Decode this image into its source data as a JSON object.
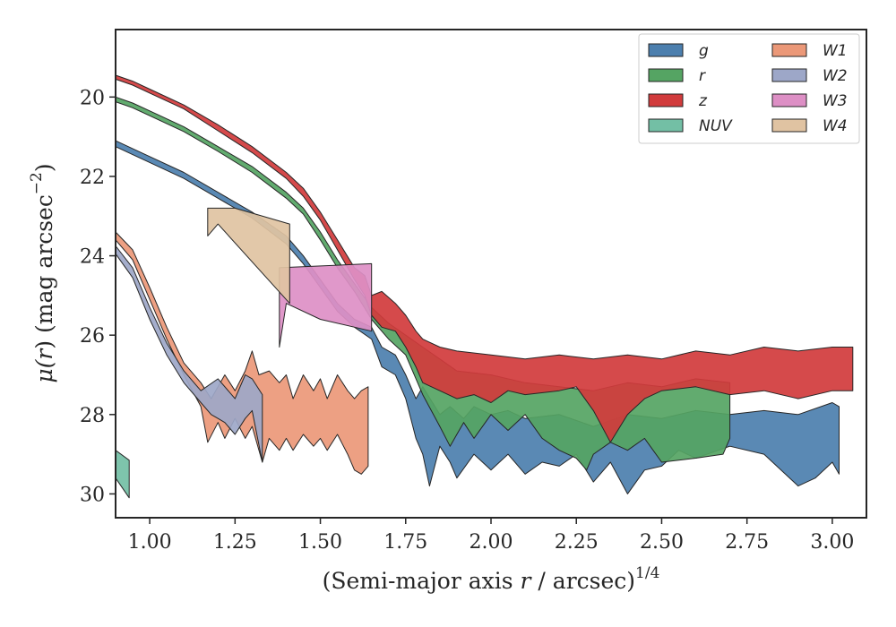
{
  "chart_data": {
    "type": "area",
    "xlabel": "(Semi-major axis r / arcsec)",
    "xlabel_parts": {
      "pre": "(Semi-major axis ",
      "var": "r",
      "post": " / arcsec)",
      "sup": "1/4"
    },
    "ylabel_parts": {
      "mu": "μ(",
      "var": "r",
      "post": ") (mag arcsec",
      "sup": "−2",
      "close": ")"
    },
    "xlim": [
      0.9,
      3.1
    ],
    "ylim": [
      30.6,
      18.3
    ],
    "y_inverted": true,
    "x_ticks": [
      1.0,
      1.25,
      1.5,
      1.75,
      2.0,
      2.25,
      2.5,
      2.75,
      3.0
    ],
    "x_tick_labels": [
      "1.00",
      "1.25",
      "1.50",
      "1.75",
      "2.00",
      "2.25",
      "2.50",
      "2.75",
      "3.00"
    ],
    "y_ticks": [
      20,
      22,
      24,
      26,
      28,
      30
    ],
    "y_tick_labels": [
      "20",
      "22",
      "24",
      "26",
      "28",
      "30"
    ],
    "grid": false,
    "legend": {
      "placement": "top-right",
      "columns": 2
    },
    "series": [
      {
        "name": "g",
        "color": "#4c7fae",
        "upper": [
          [
            0.9,
            21.1
          ],
          [
            0.95,
            21.3
          ],
          [
            1.0,
            21.5
          ],
          [
            1.1,
            21.9
          ],
          [
            1.2,
            22.4
          ],
          [
            1.3,
            22.9
          ],
          [
            1.4,
            23.5
          ],
          [
            1.45,
            24.0
          ],
          [
            1.5,
            24.6
          ],
          [
            1.55,
            25.2
          ],
          [
            1.6,
            25.6
          ],
          [
            1.65,
            25.8
          ],
          [
            1.68,
            26.3
          ],
          [
            1.72,
            26.5
          ],
          [
            1.75,
            27.0
          ],
          [
            1.78,
            27.6
          ],
          [
            1.8,
            27.3
          ],
          [
            1.85,
            28.0
          ],
          [
            1.88,
            27.8
          ],
          [
            1.92,
            28.1
          ],
          [
            1.95,
            27.8
          ],
          [
            2.0,
            28.0
          ],
          [
            2.05,
            27.9
          ],
          [
            2.1,
            28.1
          ],
          [
            2.2,
            28.0
          ],
          [
            2.3,
            28.3
          ],
          [
            2.4,
            28.0
          ],
          [
            2.5,
            28.1
          ],
          [
            2.6,
            27.9
          ],
          [
            2.7,
            28.0
          ],
          [
            2.8,
            27.9
          ],
          [
            2.9,
            28.0
          ],
          [
            3.0,
            27.7
          ],
          [
            3.02,
            27.8
          ]
        ],
        "lower": [
          [
            0.9,
            21.25
          ],
          [
            0.95,
            21.45
          ],
          [
            1.0,
            21.65
          ],
          [
            1.1,
            22.05
          ],
          [
            1.2,
            22.55
          ],
          [
            1.3,
            23.05
          ],
          [
            1.4,
            23.7
          ],
          [
            1.45,
            24.2
          ],
          [
            1.5,
            24.8
          ],
          [
            1.55,
            25.4
          ],
          [
            1.6,
            25.8
          ],
          [
            1.65,
            26.1
          ],
          [
            1.68,
            26.8
          ],
          [
            1.72,
            27.0
          ],
          [
            1.75,
            27.6
          ],
          [
            1.78,
            28.6
          ],
          [
            1.8,
            29.0
          ],
          [
            1.82,
            29.8
          ],
          [
            1.85,
            28.8
          ],
          [
            1.88,
            29.2
          ],
          [
            1.9,
            29.6
          ],
          [
            1.95,
            29.0
          ],
          [
            2.0,
            29.4
          ],
          [
            2.05,
            29.0
          ],
          [
            2.1,
            29.5
          ],
          [
            2.15,
            29.2
          ],
          [
            2.2,
            29.3
          ],
          [
            2.25,
            29.0
          ],
          [
            2.3,
            29.7
          ],
          [
            2.35,
            29.2
          ],
          [
            2.4,
            30.0
          ],
          [
            2.45,
            29.4
          ],
          [
            2.5,
            29.3
          ],
          [
            2.55,
            28.9
          ],
          [
            2.6,
            29.1
          ],
          [
            2.7,
            28.8
          ],
          [
            2.8,
            29.0
          ],
          [
            2.9,
            29.8
          ],
          [
            2.95,
            29.6
          ],
          [
            3.0,
            29.2
          ],
          [
            3.02,
            29.5
          ]
        ]
      },
      {
        "name": "r",
        "color": "#55a463",
        "upper": [
          [
            0.9,
            20.0
          ],
          [
            0.95,
            20.15
          ],
          [
            1.0,
            20.35
          ],
          [
            1.1,
            20.75
          ],
          [
            1.2,
            21.25
          ],
          [
            1.3,
            21.75
          ],
          [
            1.4,
            22.4
          ],
          [
            1.45,
            22.8
          ],
          [
            1.5,
            23.4
          ],
          [
            1.55,
            24.1
          ],
          [
            1.6,
            24.7
          ],
          [
            1.65,
            25.3
          ],
          [
            1.7,
            25.7
          ],
          [
            1.75,
            26.0
          ],
          [
            1.8,
            26.3
          ],
          [
            1.85,
            26.6
          ],
          [
            1.9,
            26.9
          ],
          [
            2.0,
            27.0
          ],
          [
            2.1,
            27.2
          ],
          [
            2.2,
            27.3
          ],
          [
            2.3,
            27.4
          ],
          [
            2.4,
            27.2
          ],
          [
            2.5,
            27.3
          ],
          [
            2.6,
            27.1
          ],
          [
            2.7,
            27.2
          ]
        ],
        "lower": [
          [
            0.9,
            20.12
          ],
          [
            0.95,
            20.27
          ],
          [
            1.0,
            20.47
          ],
          [
            1.1,
            20.87
          ],
          [
            1.2,
            21.37
          ],
          [
            1.3,
            21.9
          ],
          [
            1.4,
            22.55
          ],
          [
            1.45,
            22.95
          ],
          [
            1.5,
            23.6
          ],
          [
            1.55,
            24.3
          ],
          [
            1.6,
            24.9
          ],
          [
            1.65,
            25.6
          ],
          [
            1.7,
            26.1
          ],
          [
            1.75,
            26.5
          ],
          [
            1.8,
            27.5
          ],
          [
            1.85,
            28.3
          ],
          [
            1.88,
            28.8
          ],
          [
            1.92,
            28.2
          ],
          [
            1.95,
            28.6
          ],
          [
            2.0,
            28.0
          ],
          [
            2.05,
            28.4
          ],
          [
            2.1,
            28.0
          ],
          [
            2.15,
            28.6
          ],
          [
            2.2,
            28.9
          ],
          [
            2.25,
            29.1
          ],
          [
            2.28,
            29.4
          ],
          [
            2.3,
            29.0
          ],
          [
            2.35,
            28.7
          ],
          [
            2.4,
            28.9
          ],
          [
            2.45,
            28.6
          ],
          [
            2.5,
            29.2
          ],
          [
            2.6,
            29.1
          ],
          [
            2.68,
            29.0
          ],
          [
            2.7,
            28.6
          ]
        ]
      },
      {
        "name": "z",
        "color": "#d13b3c",
        "upper": [
          [
            0.9,
            19.45
          ],
          [
            0.95,
            19.6
          ],
          [
            1.0,
            19.8
          ],
          [
            1.1,
            20.2
          ],
          [
            1.2,
            20.7
          ],
          [
            1.3,
            21.25
          ],
          [
            1.4,
            21.9
          ],
          [
            1.45,
            22.3
          ],
          [
            1.5,
            22.9
          ],
          [
            1.55,
            23.6
          ],
          [
            1.6,
            24.3
          ],
          [
            1.63,
            24.5
          ],
          [
            1.65,
            25.0
          ],
          [
            1.68,
            24.9
          ],
          [
            1.72,
            25.2
          ],
          [
            1.75,
            25.5
          ],
          [
            1.78,
            25.9
          ],
          [
            1.8,
            26.1
          ],
          [
            1.85,
            26.3
          ],
          [
            1.9,
            26.4
          ],
          [
            2.0,
            26.5
          ],
          [
            2.1,
            26.6
          ],
          [
            2.2,
            26.5
          ],
          [
            2.3,
            26.6
          ],
          [
            2.4,
            26.5
          ],
          [
            2.5,
            26.6
          ],
          [
            2.6,
            26.4
          ],
          [
            2.7,
            26.5
          ],
          [
            2.8,
            26.3
          ],
          [
            2.9,
            26.4
          ],
          [
            3.0,
            26.3
          ],
          [
            3.06,
            26.3
          ]
        ],
        "lower": [
          [
            0.9,
            19.55
          ],
          [
            0.95,
            19.7
          ],
          [
            1.0,
            19.9
          ],
          [
            1.1,
            20.3
          ],
          [
            1.2,
            20.85
          ],
          [
            1.3,
            21.4
          ],
          [
            1.4,
            22.05
          ],
          [
            1.45,
            22.5
          ],
          [
            1.5,
            23.1
          ],
          [
            1.55,
            23.85
          ],
          [
            1.6,
            24.6
          ],
          [
            1.63,
            25.0
          ],
          [
            1.65,
            25.5
          ],
          [
            1.68,
            25.8
          ],
          [
            1.72,
            25.9
          ],
          [
            1.75,
            26.3
          ],
          [
            1.78,
            26.8
          ],
          [
            1.8,
            27.2
          ],
          [
            1.85,
            27.4
          ],
          [
            1.9,
            27.6
          ],
          [
            1.95,
            27.5
          ],
          [
            2.0,
            27.7
          ],
          [
            2.05,
            27.4
          ],
          [
            2.1,
            27.5
          ],
          [
            2.2,
            27.4
          ],
          [
            2.25,
            27.3
          ],
          [
            2.3,
            27.9
          ],
          [
            2.35,
            28.7
          ],
          [
            2.4,
            28.0
          ],
          [
            2.45,
            27.6
          ],
          [
            2.5,
            27.4
          ],
          [
            2.6,
            27.3
          ],
          [
            2.7,
            27.5
          ],
          [
            2.8,
            27.4
          ],
          [
            2.9,
            27.6
          ],
          [
            3.0,
            27.4
          ],
          [
            3.06,
            27.4
          ]
        ]
      },
      {
        "name": "NUV",
        "color": "#73bfa5",
        "upper": [
          [
            0.9,
            28.9
          ],
          [
            0.94,
            29.15
          ]
        ],
        "lower": [
          [
            0.9,
            29.6
          ],
          [
            0.94,
            30.1
          ]
        ]
      },
      {
        "name": "W1",
        "color": "#eb9878",
        "upper": [
          [
            0.9,
            23.4
          ],
          [
            0.95,
            23.85
          ],
          [
            1.0,
            24.8
          ],
          [
            1.05,
            25.8
          ],
          [
            1.1,
            26.7
          ],
          [
            1.15,
            27.2
          ],
          [
            1.18,
            27.6
          ],
          [
            1.2,
            27.3
          ],
          [
            1.22,
            27.0
          ],
          [
            1.25,
            27.4
          ],
          [
            1.28,
            26.9
          ],
          [
            1.3,
            26.4
          ],
          [
            1.32,
            27.0
          ],
          [
            1.35,
            26.9
          ],
          [
            1.38,
            27.2
          ],
          [
            1.4,
            27.0
          ],
          [
            1.42,
            27.6
          ],
          [
            1.45,
            27.0
          ],
          [
            1.48,
            27.4
          ],
          [
            1.5,
            27.1
          ],
          [
            1.52,
            27.6
          ],
          [
            1.55,
            27.0
          ],
          [
            1.58,
            27.4
          ],
          [
            1.6,
            27.6
          ],
          [
            1.62,
            27.4
          ],
          [
            1.64,
            27.3
          ]
        ],
        "lower": [
          [
            0.9,
            23.6
          ],
          [
            0.95,
            24.1
          ],
          [
            1.0,
            25.1
          ],
          [
            1.05,
            26.1
          ],
          [
            1.1,
            27.0
          ],
          [
            1.15,
            27.8
          ],
          [
            1.17,
            28.7
          ],
          [
            1.2,
            28.2
          ],
          [
            1.22,
            28.6
          ],
          [
            1.25,
            28.1
          ],
          [
            1.28,
            28.6
          ],
          [
            1.3,
            28.3
          ],
          [
            1.33,
            29.2
          ],
          [
            1.35,
            28.6
          ],
          [
            1.38,
            28.9
          ],
          [
            1.4,
            28.6
          ],
          [
            1.42,
            28.9
          ],
          [
            1.45,
            28.5
          ],
          [
            1.48,
            28.8
          ],
          [
            1.5,
            28.6
          ],
          [
            1.52,
            28.9
          ],
          [
            1.55,
            28.5
          ],
          [
            1.58,
            29.0
          ],
          [
            1.6,
            29.4
          ],
          [
            1.62,
            29.5
          ],
          [
            1.64,
            29.3
          ]
        ]
      },
      {
        "name": "W2",
        "color": "#9da7c8",
        "upper": [
          [
            0.9,
            23.75
          ],
          [
            0.95,
            24.3
          ],
          [
            1.0,
            25.3
          ],
          [
            1.05,
            26.2
          ],
          [
            1.1,
            26.9
          ],
          [
            1.15,
            27.4
          ],
          [
            1.2,
            27.1
          ],
          [
            1.25,
            27.6
          ],
          [
            1.28,
            27.0
          ],
          [
            1.3,
            27.1
          ],
          [
            1.33,
            27.5
          ]
        ],
        "lower": [
          [
            0.9,
            23.95
          ],
          [
            0.95,
            24.55
          ],
          [
            1.0,
            25.6
          ],
          [
            1.05,
            26.5
          ],
          [
            1.1,
            27.2
          ],
          [
            1.15,
            27.7
          ],
          [
            1.18,
            28.0
          ],
          [
            1.2,
            28.1
          ],
          [
            1.22,
            28.2
          ],
          [
            1.25,
            28.5
          ],
          [
            1.28,
            28.1
          ],
          [
            1.3,
            27.9
          ],
          [
            1.33,
            29.2
          ]
        ]
      },
      {
        "name": "W3",
        "color": "#dd8fc5",
        "upper": [
          [
            1.38,
            24.3
          ],
          [
            1.65,
            24.2
          ]
        ],
        "lower": [
          [
            1.38,
            26.3
          ],
          [
            1.4,
            25.2
          ],
          [
            1.5,
            25.6
          ],
          [
            1.65,
            25.9
          ]
        ]
      },
      {
        "name": "W4",
        "color": "#e0c3a2",
        "upper": [
          [
            1.17,
            22.8
          ],
          [
            1.25,
            22.8
          ],
          [
            1.41,
            23.2
          ]
        ],
        "lower": [
          [
            1.17,
            23.5
          ],
          [
            1.2,
            23.2
          ],
          [
            1.41,
            25.2
          ]
        ]
      }
    ]
  }
}
